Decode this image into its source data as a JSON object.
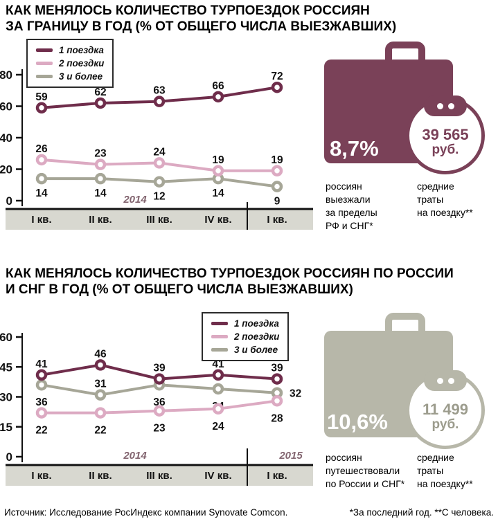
{
  "colors": {
    "maroon": "#6f2d4b",
    "maroon_case": "#7a4158",
    "pink": "#dcaac2",
    "gray": "#a6a697",
    "gray_case": "#b7b7a9",
    "strip_bg": "#d8d8d0",
    "year_label": "#82646f",
    "amount_gray": "#9c9c8d"
  },
  "footer": {
    "source": "Источник: Исследование РосИндекс компании Synovate Comcon.",
    "notes": "*За последний год. **С человека."
  },
  "chart_data": [
    {
      "type": "line",
      "title": [
        "КАК МЕНЯЛОСЬ КОЛИЧЕСТВО ТУРПОЕЗДОК РОССИЯН",
        "ЗА ГРАНИЦУ В ГОД (% ОТ ОБЩЕГО ЧИСЛА ВЫЕЗЖАВШИХ)"
      ],
      "categories": [
        "I кв.",
        "II кв.",
        "III кв.",
        "IV кв.",
        "I кв."
      ],
      "yticks": [
        80,
        60,
        40,
        20,
        0
      ],
      "ylim": [
        0,
        88
      ],
      "grid": false,
      "legend_position": "top-left",
      "legend": [
        "1 поездка",
        "2 поездки",
        "3 и более"
      ],
      "year_labels": [
        "2014"
      ],
      "series": [
        {
          "name": "1 поездка",
          "color_key": "maroon",
          "values": [
            59,
            62,
            63,
            66,
            72
          ],
          "label_side": "above"
        },
        {
          "name": "2 поездки",
          "color_key": "pink",
          "values": [
            26,
            23,
            24,
            19,
            19
          ],
          "label_side": "above"
        },
        {
          "name": "3 и более",
          "color_key": "gray",
          "values": [
            14,
            14,
            12,
            14,
            9
          ],
          "label_side": "below"
        }
      ],
      "panel": {
        "pct": "8,7%",
        "pct_caption": [
          "россиян",
          "выезжали",
          "за пределы",
          "РФ и СНГ*"
        ],
        "amount": [
          "39 565",
          "руб."
        ],
        "amount_caption": [
          "средние",
          "траты",
          "на поездку**"
        ]
      }
    },
    {
      "type": "line",
      "title": [
        "КАК МЕНЯЛОСЬ КОЛИЧЕСТВО ТУРПОЕЗДОК РОССИЯН ПО РОССИИ",
        "И СНГ В ГОД (% ОТ ОБЩЕГО ЧИСЛА ВЫЕЗЖАВШИХ)"
      ],
      "categories": [
        "I кв.",
        "II кв.",
        "III кв.",
        "IV кв.",
        "I кв."
      ],
      "yticks": [
        60,
        45,
        30,
        15,
        0
      ],
      "ylim": [
        0,
        62
      ],
      "grid": false,
      "legend_position": "top-right",
      "legend": [
        "1 поездка",
        "2 поездки",
        "3 и более"
      ],
      "year_labels": [
        "2014",
        "2015"
      ],
      "series": [
        {
          "name": "1 поездка",
          "color_key": "maroon",
          "values": [
            41,
            46,
            39,
            41,
            39
          ],
          "label_side": "above"
        },
        {
          "name": "2 поездки",
          "color_key": "pink",
          "values": [
            22,
            22,
            23,
            24,
            28
          ],
          "label_side": "below"
        },
        {
          "name": "3 и более",
          "color_key": "gray",
          "values": [
            36,
            31,
            36,
            34,
            32
          ],
          "label_side": "below",
          "label_overrides": {
            "1": "above",
            "4": "right"
          }
        }
      ],
      "panel": {
        "pct": "10,6%",
        "pct_caption": [
          "россиян",
          "путешествовали",
          "по России и СНГ*"
        ],
        "amount": [
          "11 499",
          "руб."
        ],
        "amount_caption": [
          "средние",
          "траты",
          "на поездку**"
        ]
      }
    }
  ]
}
